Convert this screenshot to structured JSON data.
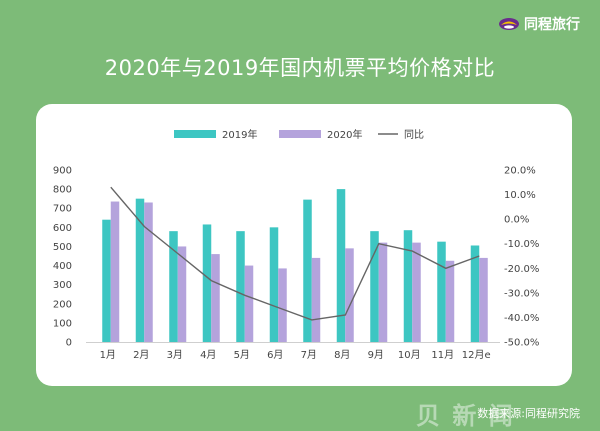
{
  "brand": {
    "name": "同程旅行",
    "logo_icon": "tongcheng-logo-icon"
  },
  "page_title": "2020年与2019年国内机票平均价格对比",
  "footer": {
    "source": "数据来源:同程研究院"
  },
  "colors": {
    "background": "#7dbb78",
    "series_2019": "#3dc6c2",
    "series_2020": "#b4a3dc",
    "series_yoy": "#666666"
  },
  "chart_data": {
    "type": "bar",
    "title": "2020年与2019年国内机票平均价格对比",
    "categories": [
      "1月",
      "2月",
      "3月",
      "4月",
      "5月",
      "6月",
      "7月",
      "8月",
      "9月",
      "10月",
      "11月",
      "12月e"
    ],
    "series": [
      {
        "name": "2019年",
        "type": "bar",
        "axis": "left",
        "values": [
          640,
          750,
          580,
          615,
          580,
          600,
          745,
          800,
          580,
          585,
          525,
          505
        ]
      },
      {
        "name": "2020年",
        "type": "bar",
        "axis": "left",
        "values": [
          735,
          730,
          500,
          460,
          400,
          385,
          440,
          490,
          520,
          520,
          425,
          440
        ]
      },
      {
        "name": "同比",
        "type": "line",
        "axis": "right",
        "values": [
          13.0,
          -3.0,
          -14.0,
          -25.0,
          -31.0,
          -36.0,
          -41.0,
          -39.0,
          -10.0,
          -13.0,
          -20.0,
          -15.0
        ]
      }
    ],
    "y_left": {
      "min": 0,
      "max": 900,
      "ticks": [
        "0",
        "100",
        "200",
        "300",
        "400",
        "500",
        "600",
        "700",
        "800",
        "900"
      ]
    },
    "y_right": {
      "min": -50,
      "max": 20,
      "ticks": [
        "20.0%",
        "10.0%",
        "0.0%",
        "-10.0%",
        "-20.0%",
        "-30.0%",
        "-40.0%",
        "-50.0%"
      ]
    },
    "legend": {
      "placement": "top-center",
      "items": [
        "2019年",
        "2020年",
        "同比"
      ]
    },
    "grid": false
  }
}
